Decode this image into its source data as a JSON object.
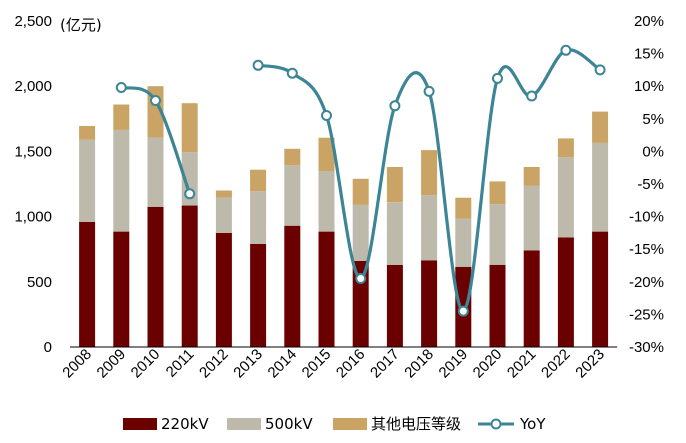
{
  "chart_data": {
    "type": "bar",
    "stacked": true,
    "title": "",
    "unit_label": "(亿元)",
    "categories": [
      "2008",
      "2009",
      "2010",
      "2011",
      "2012",
      "2013",
      "2014",
      "2015",
      "2016",
      "2017",
      "2018",
      "2019",
      "2020",
      "2021",
      "2022",
      "2023"
    ],
    "series": [
      {
        "name": "220kV",
        "color": "#6B0000",
        "axis": "left",
        "values": [
          960,
          885,
          1075,
          1085,
          875,
          790,
          930,
          885,
          660,
          630,
          665,
          615,
          630,
          740,
          840,
          885
        ]
      },
      {
        "name": "500kV",
        "color": "#BDB9AB",
        "axis": "left",
        "values": [
          630,
          780,
          530,
          410,
          270,
          405,
          465,
          465,
          430,
          480,
          500,
          370,
          465,
          495,
          615,
          680
        ]
      },
      {
        "name": "其他电压等级",
        "color": "#C9A465",
        "axis": "left",
        "values": [
          105,
          195,
          395,
          375,
          55,
          165,
          125,
          255,
          200,
          270,
          345,
          160,
          175,
          145,
          145,
          240
        ]
      },
      {
        "name": "YoY",
        "color": "#3C8596",
        "axis": "right",
        "type": "line",
        "values": [
          null,
          9.8,
          7.8,
          -6.5,
          null,
          13.2,
          12.0,
          5.5,
          -19.5,
          7.0,
          9.2,
          -24.5,
          11.2,
          8.5,
          15.5,
          12.5
        ]
      }
    ],
    "yaxis_left": {
      "min": 0,
      "max": 2500,
      "ticks": [
        0,
        500,
        1000,
        1500,
        2000,
        2500
      ],
      "tick_labels": [
        "0",
        "500",
        "1,000",
        "1,500",
        "2,000",
        "2,500"
      ]
    },
    "yaxis_right": {
      "min": -30,
      "max": 20,
      "ticks": [
        -30,
        -25,
        -20,
        -15,
        -10,
        -5,
        0,
        5,
        10,
        15,
        20
      ],
      "tick_labels": [
        "-30%",
        "-25%",
        "-20%",
        "-15%",
        "-10%",
        "-5%",
        "0%",
        "5%",
        "10%",
        "15%",
        "20%"
      ]
    },
    "legend_position": "bottom",
    "grid": false
  }
}
